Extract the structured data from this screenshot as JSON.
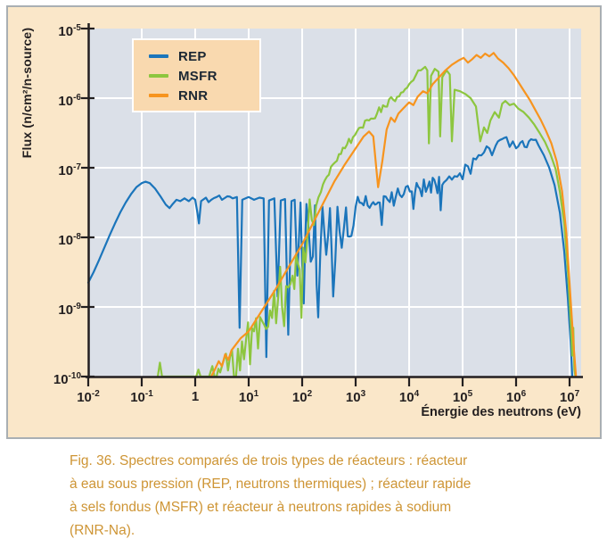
{
  "colors": {
    "figure_background": "#FAE7C9",
    "plot_background": "#DBE0E8",
    "gridline": "#FFFFFF",
    "axis": "#231F20",
    "legend_background": "#F9D9AF",
    "caption_text": "#CE9535",
    "rep_blue": "#1B75BB",
    "msfr_green": "#8DC63F",
    "rnr_orange": "#F7941E"
  },
  "caption": {
    "lines": [
      "Fig. 36. Spectres comparés de trois types de réacteurs : réacteur",
      "à eau sous pression (REP, neutrons thermiques) ; réacteur rapide",
      "à sels fondus (MSFR) et réacteur à neutrons rapides à sodium",
      "(RNR-Na)."
    ]
  },
  "chart_data": {
    "type": "line",
    "title": "",
    "xlabel": "Énergie des neutrons (eV)",
    "ylabel": "Flux (n/cm²/n-source)",
    "x_scale": "log",
    "y_scale": "log",
    "x_range_exp": [
      -2,
      7.25
    ],
    "y_range_exp": [
      -10,
      -5
    ],
    "x_ticks_exp": [
      -2,
      -1,
      0,
      1,
      2,
      3,
      4,
      5,
      6,
      7
    ],
    "y_ticks_exp": [
      -5,
      -6,
      -7,
      -8,
      -9,
      -10
    ],
    "grid": true,
    "legend_position": "top-left-inset",
    "series": [
      {
        "name": "REP",
        "color": "#1B75BB",
        "points": [
          [
            -2.0,
            -8.65
          ],
          [
            -1.9,
            -8.5
          ],
          [
            -1.8,
            -8.33
          ],
          [
            -1.7,
            -8.15
          ],
          [
            -1.6,
            -7.97
          ],
          [
            -1.5,
            -7.8
          ],
          [
            -1.4,
            -7.64
          ],
          [
            -1.3,
            -7.5
          ],
          [
            -1.2,
            -7.38
          ],
          [
            -1.1,
            -7.28
          ],
          [
            -1.0,
            -7.22
          ],
          [
            -0.93,
            -7.2
          ],
          [
            -0.85,
            -7.22
          ],
          [
            -0.75,
            -7.3
          ],
          [
            -0.65,
            -7.41
          ],
          [
            -0.55,
            -7.53
          ],
          [
            -0.48,
            -7.58
          ],
          [
            -0.42,
            -7.52
          ],
          [
            -0.35,
            -7.46
          ],
          [
            -0.28,
            -7.48
          ],
          [
            -0.2,
            -7.44
          ],
          [
            -0.12,
            -7.48
          ],
          [
            -0.05,
            -7.43
          ],
          [
            0.0,
            -7.46
          ],
          [
            0.04,
            -7.64
          ],
          [
            0.07,
            -7.8
          ],
          [
            0.11,
            -7.48
          ],
          [
            0.2,
            -7.43
          ],
          [
            0.3,
            -7.46
          ],
          [
            0.4,
            -7.42
          ],
          [
            0.5,
            -7.46
          ],
          [
            0.6,
            -7.41
          ],
          [
            0.7,
            -7.44
          ],
          [
            0.78,
            -7.42
          ],
          [
            0.83,
            -9.3
          ],
          [
            0.88,
            -7.46
          ],
          [
            1.0,
            -7.42
          ],
          [
            1.1,
            -7.46
          ],
          [
            1.2,
            -7.43
          ],
          [
            1.28,
            -7.44
          ],
          [
            1.33,
            -9.72
          ],
          [
            1.38,
            -7.47
          ],
          [
            1.48,
            -7.44
          ],
          [
            1.54,
            -8.85
          ],
          [
            1.6,
            -7.47
          ],
          [
            1.68,
            -7.45
          ],
          [
            1.74,
            -9.4
          ],
          [
            1.8,
            -7.48
          ],
          [
            1.86,
            -7.46
          ],
          [
            1.91,
            -8.55
          ],
          [
            1.97,
            -7.5
          ],
          [
            2.03,
            -8.95
          ],
          [
            2.08,
            -7.52
          ],
          [
            2.16,
            -8.35
          ],
          [
            2.24,
            -7.54
          ],
          [
            2.3,
            -9.15
          ],
          [
            2.38,
            -7.56
          ],
          [
            2.45,
            -8.25
          ],
          [
            2.52,
            -7.58
          ],
          [
            2.58,
            -8.85
          ],
          [
            2.66,
            -7.56
          ],
          [
            2.74,
            -8.15
          ],
          [
            2.82,
            -7.57
          ],
          [
            2.92,
            -7.98
          ],
          [
            3.0,
            -7.56
          ],
          [
            3.15,
            -7.54
          ],
          [
            3.3,
            -7.52
          ],
          [
            3.45,
            -7.5
          ],
          [
            3.6,
            -7.46
          ],
          [
            3.75,
            -7.42
          ],
          [
            3.9,
            -7.38
          ],
          [
            4.05,
            -7.34
          ],
          [
            4.2,
            -7.3
          ],
          [
            4.35,
            -7.27
          ],
          [
            4.5,
            -7.25
          ],
          [
            4.65,
            -7.21
          ],
          [
            4.8,
            -7.17
          ],
          [
            4.95,
            -7.08
          ],
          [
            5.1,
            -6.98
          ],
          [
            5.25,
            -6.88
          ],
          [
            5.4,
            -6.78
          ],
          [
            5.5,
            -6.72
          ],
          [
            5.55,
            -6.82
          ],
          [
            5.62,
            -6.68
          ],
          [
            5.7,
            -6.6
          ],
          [
            5.78,
            -6.57
          ],
          [
            5.82,
            -6.56
          ],
          [
            5.88,
            -6.7
          ],
          [
            5.94,
            -6.62
          ],
          [
            6.0,
            -6.72
          ],
          [
            6.08,
            -6.64
          ],
          [
            6.16,
            -6.7
          ],
          [
            6.24,
            -6.62
          ],
          [
            6.32,
            -6.6
          ],
          [
            6.42,
            -6.68
          ],
          [
            6.52,
            -6.82
          ],
          [
            6.62,
            -7.0
          ],
          [
            6.72,
            -7.25
          ],
          [
            6.82,
            -7.65
          ],
          [
            6.9,
            -8.2
          ],
          [
            6.97,
            -8.9
          ],
          [
            7.02,
            -9.5
          ],
          [
            7.05,
            -10.0
          ]
        ]
      },
      {
        "name": "MSFR",
        "color": "#8DC63F",
        "points": [
          [
            -0.7,
            -10
          ],
          [
            -0.66,
            -9.8
          ],
          [
            -0.62,
            -10
          ],
          [
            0.02,
            -10
          ],
          [
            0.06,
            -9.9
          ],
          [
            0.1,
            -10
          ],
          [
            0.26,
            -10
          ],
          [
            0.32,
            -9.85
          ],
          [
            0.4,
            -10
          ],
          [
            0.5,
            -9.85
          ],
          [
            0.65,
            -9.72
          ],
          [
            0.8,
            -9.6
          ],
          [
            0.95,
            -9.48
          ],
          [
            1.1,
            -9.35
          ],
          [
            1.25,
            -9.2
          ],
          [
            1.4,
            -9.05
          ],
          [
            1.55,
            -8.88
          ],
          [
            1.7,
            -8.7
          ],
          [
            1.82,
            -8.55
          ],
          [
            1.92,
            -8.38
          ],
          [
            2.02,
            -8.15
          ],
          [
            2.1,
            -7.98
          ],
          [
            2.18,
            -7.75
          ],
          [
            2.26,
            -7.55
          ],
          [
            2.35,
            -7.35
          ],
          [
            2.5,
            -7.1
          ],
          [
            2.65,
            -6.9
          ],
          [
            2.8,
            -6.72
          ],
          [
            2.95,
            -6.56
          ],
          [
            3.1,
            -6.42
          ],
          [
            3.25,
            -6.32
          ],
          [
            3.4,
            -6.22
          ],
          [
            3.55,
            -6.12
          ],
          [
            3.7,
            -6.02
          ],
          [
            3.85,
            -5.92
          ],
          [
            4.0,
            -5.8
          ],
          [
            4.12,
            -5.68
          ],
          [
            4.22,
            -5.6
          ],
          [
            4.3,
            -5.55
          ],
          [
            4.34,
            -5.6
          ],
          [
            4.37,
            -6.65
          ],
          [
            4.41,
            -5.68
          ],
          [
            4.48,
            -5.58
          ],
          [
            4.55,
            -5.62
          ],
          [
            4.58,
            -6.55
          ],
          [
            4.62,
            -5.7
          ],
          [
            4.7,
            -5.6
          ],
          [
            4.76,
            -5.66
          ],
          [
            4.8,
            -6.62
          ],
          [
            4.85,
            -5.88
          ],
          [
            4.95,
            -5.9
          ],
          [
            5.05,
            -5.94
          ],
          [
            5.15,
            -6.0
          ],
          [
            5.25,
            -6.12
          ],
          [
            5.33,
            -6.62
          ],
          [
            5.4,
            -6.42
          ],
          [
            5.46,
            -6.5
          ],
          [
            5.52,
            -6.32
          ],
          [
            5.6,
            -6.2
          ],
          [
            5.68,
            -6.28
          ],
          [
            5.74,
            -6.08
          ],
          [
            5.8,
            -6.04
          ],
          [
            5.88,
            -6.1
          ],
          [
            5.96,
            -6.08
          ],
          [
            6.04,
            -6.15
          ],
          [
            6.14,
            -6.2
          ],
          [
            6.24,
            -6.28
          ],
          [
            6.34,
            -6.38
          ],
          [
            6.44,
            -6.5
          ],
          [
            6.54,
            -6.63
          ],
          [
            6.64,
            -6.8
          ],
          [
            6.74,
            -7.02
          ],
          [
            6.82,
            -7.35
          ],
          [
            6.9,
            -7.8
          ],
          [
            6.97,
            -8.5
          ],
          [
            7.02,
            -9.2
          ],
          [
            7.05,
            -9.7
          ],
          [
            7.07,
            -9.3
          ],
          [
            7.09,
            -9.9
          ],
          [
            7.11,
            -10
          ]
        ]
      },
      {
        "name": "RNR",
        "color": "#F7941E",
        "points": [
          [
            0.3,
            -10
          ],
          [
            0.38,
            -9.88
          ],
          [
            0.44,
            -9.78
          ],
          [
            0.5,
            -9.85
          ],
          [
            0.56,
            -9.68
          ],
          [
            0.62,
            -9.76
          ],
          [
            0.68,
            -9.62
          ],
          [
            0.75,
            -9.55
          ],
          [
            0.85,
            -9.45
          ],
          [
            1.0,
            -9.35
          ],
          [
            1.25,
            -9.05
          ],
          [
            1.5,
            -8.75
          ],
          [
            1.75,
            -8.42
          ],
          [
            2.0,
            -8.1
          ],
          [
            2.2,
            -7.8
          ],
          [
            2.4,
            -7.5
          ],
          [
            2.6,
            -7.2
          ],
          [
            2.8,
            -6.95
          ],
          [
            3.0,
            -6.72
          ],
          [
            3.15,
            -6.55
          ],
          [
            3.25,
            -6.48
          ],
          [
            3.33,
            -6.55
          ],
          [
            3.42,
            -7.28
          ],
          [
            3.5,
            -6.9
          ],
          [
            3.58,
            -6.45
          ],
          [
            3.66,
            -6.28
          ],
          [
            3.73,
            -6.34
          ],
          [
            3.8,
            -6.22
          ],
          [
            3.9,
            -6.14
          ],
          [
            4.0,
            -6.06
          ],
          [
            4.08,
            -6.1
          ],
          [
            4.16,
            -5.98
          ],
          [
            4.26,
            -5.9
          ],
          [
            4.34,
            -5.93
          ],
          [
            4.44,
            -5.8
          ],
          [
            4.56,
            -5.7
          ],
          [
            4.68,
            -5.6
          ],
          [
            4.8,
            -5.52
          ],
          [
            4.92,
            -5.46
          ],
          [
            5.02,
            -5.42
          ],
          [
            5.1,
            -5.49
          ],
          [
            5.18,
            -5.44
          ],
          [
            5.26,
            -5.38
          ],
          [
            5.34,
            -5.42
          ],
          [
            5.42,
            -5.36
          ],
          [
            5.5,
            -5.4
          ],
          [
            5.58,
            -5.35
          ],
          [
            5.66,
            -5.43
          ],
          [
            5.76,
            -5.49
          ],
          [
            5.86,
            -5.57
          ],
          [
            5.96,
            -5.67
          ],
          [
            6.06,
            -5.79
          ],
          [
            6.16,
            -5.91
          ],
          [
            6.26,
            -6.03
          ],
          [
            6.36,
            -6.17
          ],
          [
            6.46,
            -6.31
          ],
          [
            6.56,
            -6.47
          ],
          [
            6.66,
            -6.65
          ],
          [
            6.76,
            -6.91
          ],
          [
            6.86,
            -7.34
          ],
          [
            6.94,
            -7.94
          ],
          [
            7.02,
            -8.9
          ],
          [
            7.08,
            -9.6
          ],
          [
            7.12,
            -10
          ]
        ]
      }
    ],
    "noise_bands": [
      {
        "series": "REP",
        "from": -0.45,
        "to": 0.78,
        "amp": 0.05,
        "freq": 16
      },
      {
        "series": "REP",
        "from": 2.0,
        "to": 4.6,
        "amp": 0.15,
        "freq": 30
      },
      {
        "series": "REP",
        "from": 4.6,
        "to": 6.45,
        "amp": 0.06,
        "freq": 20
      },
      {
        "series": "MSFR",
        "from": 0.3,
        "to": 2.26,
        "amp": 0.42,
        "freq": 26
      },
      {
        "series": "MSFR",
        "from": 2.3,
        "to": 4.25,
        "amp": 0.07,
        "freq": 24
      },
      {
        "series": "MSFR",
        "from": 5.4,
        "to": 6.3,
        "amp": 0.05,
        "freq": 14
      },
      {
        "series": "RNR",
        "from": 0.45,
        "to": 0.85,
        "amp": 0.06,
        "freq": 12
      },
      {
        "series": "RNR",
        "from": 3.85,
        "to": 5.9,
        "amp": 0.04,
        "freq": 12
      }
    ]
  }
}
